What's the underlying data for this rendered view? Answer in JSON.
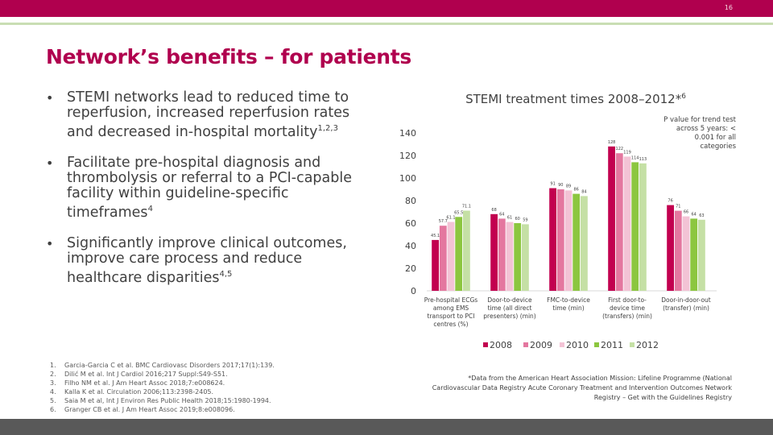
{
  "page_number": "16",
  "title": "Network’s benefits – for patients",
  "bullets": [
    {
      "text": "STEMI networks lead to reduced time to reperfusion, increased reperfusion rates and decreased in-hospital mortality",
      "sup": "1,2,3"
    },
    {
      "text": "Facilitate pre-hospital diagnosis and thrombolysis or referral to a PCI-capable facility within guideline-specific timeframes",
      "sup": "4"
    },
    {
      "text": "Significantly improve clinical outcomes, improve care process and reduce healthcare disparities",
      "sup": "4,5"
    }
  ],
  "references": [
    {
      "num": "1.",
      "text": "Garcia-Garcia C et al. BMC Cardiovasc Disorders 2017;17(1):139."
    },
    {
      "num": "2.",
      "text": "Dilić M et al. Int J Cardiol 2016;217 Suppl:S49-S51."
    },
    {
      "num": "3.",
      "text": "Filho NM et al. J Am Heart Assoc 2018;7:e008624."
    },
    {
      "num": "4.",
      "text": "Kalla K et al. Circulation 2006;113:2398-2405."
    },
    {
      "num": "5.",
      "text": "Saia M et al, Int J Environ Res Public Health 2018;15:1980-1994."
    },
    {
      "num": "6.",
      "text": "Granger CB et al. J Am Heart Assoc 2019;8:e008096."
    }
  ],
  "footnote": "*Data from the American Heart Association Mission: Lifeline Programme (National Cardiovascular Data Registry Acute Coronary Treatment and Intervention Outcomes Network Registry – Get with the Guidelines Registry",
  "colors": {
    "brand": "#b0004e",
    "accent_green": "#c9deb4",
    "footer": "#595959"
  },
  "chart_data": {
    "type": "bar",
    "title": "STEMI treatment times 2008–2012*",
    "title_sup": "6",
    "annotation": "P value for trend test across 5 years: < 0.001 for all categories",
    "categories": [
      [
        "Pre-hospital ECGs",
        "among EMS",
        "transport to PCI",
        "centres (%)"
      ],
      [
        "Door-to-device",
        "time (all direct",
        "presenters) (min)"
      ],
      [
        "FMC-to-device",
        "time (min)"
      ],
      [
        "First door-to-",
        "device time",
        "(transfers) (min)"
      ],
      [
        "Door-in-door-out",
        "(transfer) (min)"
      ]
    ],
    "ylim": [
      0,
      140
    ],
    "yticks": [
      0,
      20,
      40,
      60,
      80,
      100,
      120,
      140
    ],
    "series": [
      {
        "name": "2008",
        "color": "#c2004f",
        "values": [
          45.1,
          68,
          91,
          128,
          76
        ],
        "labels": [
          "45.1",
          "68",
          "91",
          "128",
          "76"
        ]
      },
      {
        "name": "2009",
        "color": "#e4779f",
        "values": [
          57.7,
          64,
          90,
          122,
          71
        ],
        "labels": [
          "57.7",
          "64",
          "90",
          "122",
          "71"
        ]
      },
      {
        "name": "2010",
        "color": "#f3c3d5",
        "values": [
          61.1,
          61,
          89,
          119,
          66
        ],
        "labels": [
          "61.1",
          "61",
          "89",
          "119",
          "66"
        ]
      },
      {
        "name": "2011",
        "color": "#8cc63f",
        "values": [
          65.5,
          60,
          86,
          114,
          64
        ],
        "labels": [
          "65.5",
          "60",
          "86",
          "114",
          "64"
        ]
      },
      {
        "name": "2012",
        "color": "#c5e0a5",
        "values": [
          71.1,
          59,
          84,
          113,
          63
        ],
        "labels": [
          "71.1",
          "59",
          "84",
          "113",
          "63"
        ]
      }
    ]
  }
}
